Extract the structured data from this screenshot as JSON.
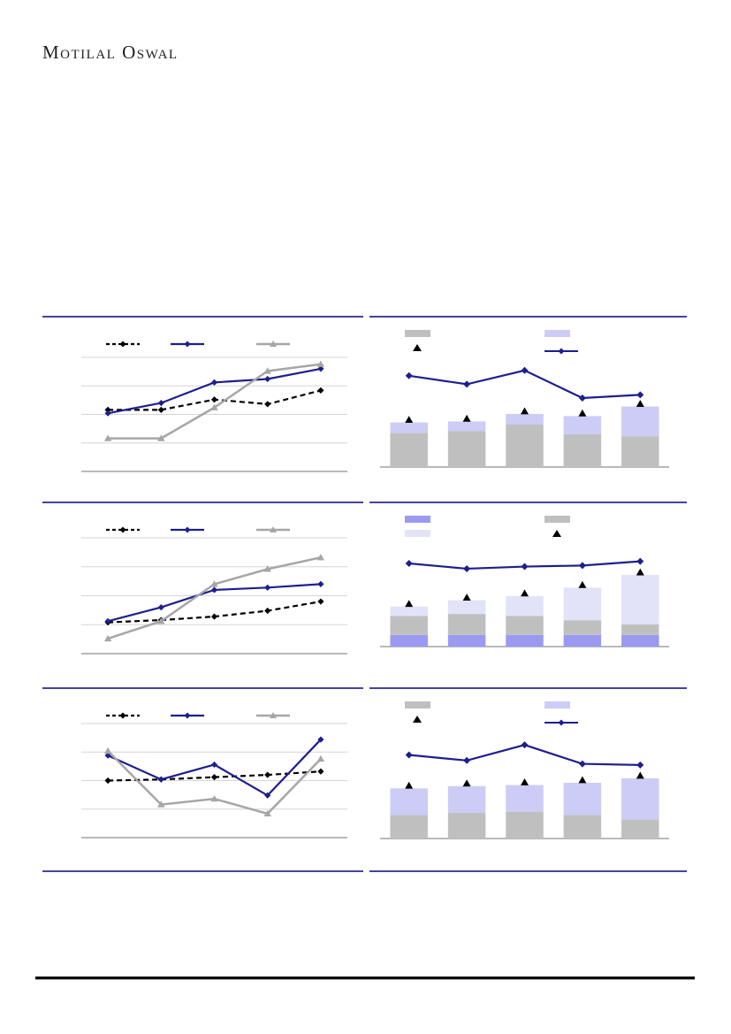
{
  "page": {
    "brand": "Motilal Oswal",
    "background": "#ffffff",
    "text_labels_visible": false
  },
  "colors": {
    "black": "#000000",
    "navy": "#1e1e8f",
    "grayLine": "#a6a6a6",
    "barGray": "#bfbfbf",
    "lavender": "#ccccf7",
    "lightLavender": "#e2e2f8",
    "periwinkle": "#9a9af2",
    "axis": "#8f8f8f",
    "grid": "#d6d6d6",
    "rule": "#44449b",
    "footerLine": "#0c0c0c"
  },
  "chart_data": [
    {
      "id": "line-chart-top-left",
      "type": "line",
      "title": "",
      "labels_visible": false,
      "n_points": 5,
      "categories": [
        "",
        "",
        "",
        "",
        ""
      ],
      "ylim": [
        0,
        100
      ],
      "unit": "relative scale (no axis tick labels rendered in source)",
      "gridlines": true,
      "legend_position": "top-row",
      "series": [
        {
          "name": "black-dashed-diamond",
          "label": "",
          "marker": "diamond",
          "dash": true,
          "color_key": "black",
          "values": [
            54,
            54,
            63,
            59,
            71
          ]
        },
        {
          "name": "navy-solid-diamond",
          "label": "",
          "marker": "diamond",
          "dash": false,
          "color_key": "navy",
          "values": [
            51,
            60,
            78,
            81,
            90
          ]
        },
        {
          "name": "gray-solid-triangle",
          "label": "",
          "marker": "triangle",
          "dash": false,
          "color_key": "grayLine",
          "width": 2.5,
          "values": [
            29,
            29,
            56,
            88,
            94
          ]
        }
      ]
    },
    {
      "id": "stacked-bar-line-top-right",
      "type": "stacked-bar+line",
      "title": "",
      "labels_visible": false,
      "n_points": 5,
      "categories": [
        "",
        "",
        "",
        "",
        ""
      ],
      "ylim": [
        0,
        100
      ],
      "unit": "relative scale (no axis tick labels rendered in source)",
      "gridlines": false,
      "legend_position": "top-grid-2x2",
      "series": [
        {
          "name": "gray-bar",
          "label": "",
          "type": "bar",
          "color_key": "barGray",
          "values": [
            32,
            34,
            40,
            31,
            29
          ]
        },
        {
          "name": "lavender-bar",
          "label": "",
          "type": "bar",
          "color_key": "lavender",
          "values": [
            10,
            9,
            10,
            17,
            28
          ]
        },
        {
          "name": "black-triangle-marker",
          "label": "",
          "type": "scatter",
          "color_key": "black",
          "values": [
            42,
            43,
            50,
            48,
            57
          ]
        },
        {
          "name": "navy-line-diamond",
          "label": "",
          "type": "line",
          "color_key": "navy",
          "values": [
            86,
            78,
            91,
            65,
            68
          ]
        }
      ]
    },
    {
      "id": "line-chart-middle-left",
      "type": "line",
      "title": "",
      "labels_visible": false,
      "n_points": 5,
      "categories": [
        "",
        "",
        "",
        "",
        ""
      ],
      "ylim": [
        0,
        100
      ],
      "unit": "relative scale (no axis tick labels rendered in source)",
      "gridlines": true,
      "legend_position": "top-row",
      "series": [
        {
          "name": "black-dashed-diamond",
          "label": "",
          "marker": "diamond",
          "dash": true,
          "color_key": "black",
          "values": [
            27,
            29,
            32,
            37,
            45
          ]
        },
        {
          "name": "navy-solid-diamond",
          "label": "",
          "marker": "diamond",
          "dash": false,
          "color_key": "navy",
          "values": [
            28,
            40,
            55,
            57,
            60
          ]
        },
        {
          "name": "gray-solid-triangle",
          "label": "",
          "marker": "triangle",
          "dash": false,
          "color_key": "grayLine",
          "width": 2.5,
          "values": [
            13,
            28,
            60,
            73,
            83
          ]
        }
      ]
    },
    {
      "id": "stacked-bar-line-middle-right",
      "type": "stacked-bar+line",
      "title": "",
      "labels_visible": false,
      "n_points": 5,
      "categories": [
        "",
        "",
        "",
        "",
        ""
      ],
      "ylim": [
        0,
        100
      ],
      "unit": "relative scale (no axis tick labels rendered in source)",
      "gridlines": false,
      "legend_position": "top-grid-2x2",
      "series": [
        {
          "name": "periwinkle-bar",
          "label": "",
          "type": "bar",
          "color_key": "periwinkle",
          "values": [
            11,
            11,
            11,
            11,
            11
          ]
        },
        {
          "name": "gray-bar",
          "label": "",
          "type": "bar",
          "color_key": "barGray",
          "values": [
            18,
            20,
            18,
            14,
            10
          ]
        },
        {
          "name": "light-lavender-bar",
          "label": "",
          "type": "bar",
          "color_key": "lightLavender",
          "values": [
            9,
            13,
            19,
            31,
            47
          ]
        },
        {
          "name": "black-triangle-marker",
          "label": "",
          "type": "scatter",
          "color_key": "black",
          "values": [
            38,
            44,
            48,
            56,
            68
          ]
        },
        {
          "name": "navy-line-diamond",
          "label": "",
          "type": "line",
          "color_key": "navy",
          "in_legend": false,
          "values": [
            79,
            74,
            76,
            77,
            81
          ]
        }
      ]
    },
    {
      "id": "line-chart-bottom-left",
      "type": "line",
      "title": "",
      "labels_visible": false,
      "n_points": 5,
      "categories": [
        "",
        "",
        "",
        "",
        ""
      ],
      "ylim": [
        0,
        100
      ],
      "unit": "relative scale (no axis tick labels rendered in source)",
      "gridlines": true,
      "legend_position": "top-row",
      "series": [
        {
          "name": "black-dashed-diamond",
          "label": "",
          "marker": "diamond",
          "dash": true,
          "color_key": "black",
          "values": [
            50,
            51,
            53,
            55,
            58
          ]
        },
        {
          "name": "navy-solid-diamond",
          "label": "",
          "marker": "diamond",
          "dash": false,
          "color_key": "navy",
          "values": [
            72,
            51,
            64,
            37,
            86
          ]
        },
        {
          "name": "gray-solid-triangle",
          "label": "",
          "marker": "triangle",
          "dash": false,
          "color_key": "grayLine",
          "width": 2.5,
          "values": [
            76,
            29,
            34,
            21,
            69
          ]
        }
      ]
    },
    {
      "id": "stacked-bar-line-bottom-right",
      "type": "stacked-bar+line",
      "title": "",
      "labels_visible": false,
      "n_points": 5,
      "categories": [
        "",
        "",
        "",
        "",
        ""
      ],
      "ylim": [
        0,
        100
      ],
      "unit": "relative scale (no axis tick labels rendered in source)",
      "gridlines": false,
      "legend_position": "top-grid-2x2",
      "series": [
        {
          "name": "gray-bar",
          "label": "",
          "type": "bar",
          "color_key": "barGray",
          "values": [
            21,
            23,
            24,
            21,
            17
          ]
        },
        {
          "name": "lavender-bar",
          "label": "",
          "type": "bar",
          "color_key": "lavender",
          "values": [
            24,
            24,
            24,
            29,
            37
          ]
        },
        {
          "name": "black-triangle-marker",
          "label": "",
          "type": "scatter",
          "color_key": "black",
          "values": [
            45,
            47,
            48,
            50,
            54
          ]
        },
        {
          "name": "navy-line-diamond",
          "label": "",
          "type": "line",
          "color_key": "navy",
          "values": [
            75,
            70,
            84,
            67,
            66
          ]
        }
      ]
    }
  ]
}
